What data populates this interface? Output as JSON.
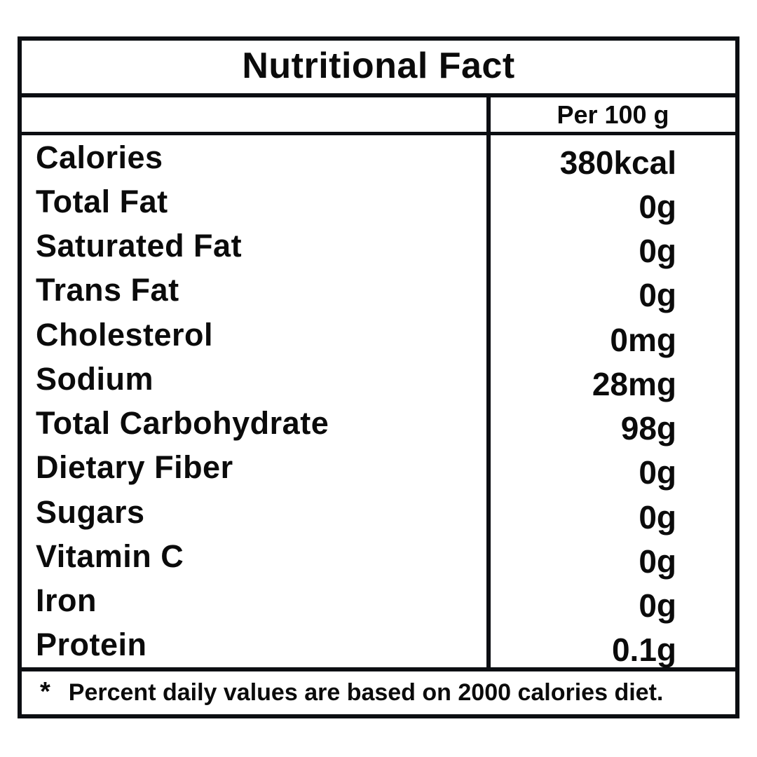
{
  "label": {
    "title": "Nutritional Fact",
    "column_header": "Per 100 g",
    "footnote_marker": "*",
    "footnote_text": "Percent daily values are based on 2000 calories diet."
  },
  "table": {
    "rows": [
      {
        "label": "Calories",
        "value": "380kcal"
      },
      {
        "label": "Total Fat",
        "value": "0g"
      },
      {
        "label": "Saturated Fat",
        "value": "0g"
      },
      {
        "label": "Trans Fat",
        "value": "0g"
      },
      {
        "label": "Cholesterol",
        "value": "0mg"
      },
      {
        "label": "Sodium",
        "value": "28mg"
      },
      {
        "label": "Total Carbohydrate",
        "value": "98g"
      },
      {
        "label": "Dietary Fiber",
        "value": "0g"
      },
      {
        "label": "Sugars",
        "value": "0g"
      },
      {
        "label": "Vitamin C",
        "value": "0g"
      },
      {
        "label": "Iron",
        "value": "0g"
      },
      {
        "label": "Protein",
        "value": "0.1g"
      }
    ]
  },
  "colors": {
    "border": "#0c0e12",
    "text": "#0b0b0b",
    "background": "#ffffff"
  }
}
